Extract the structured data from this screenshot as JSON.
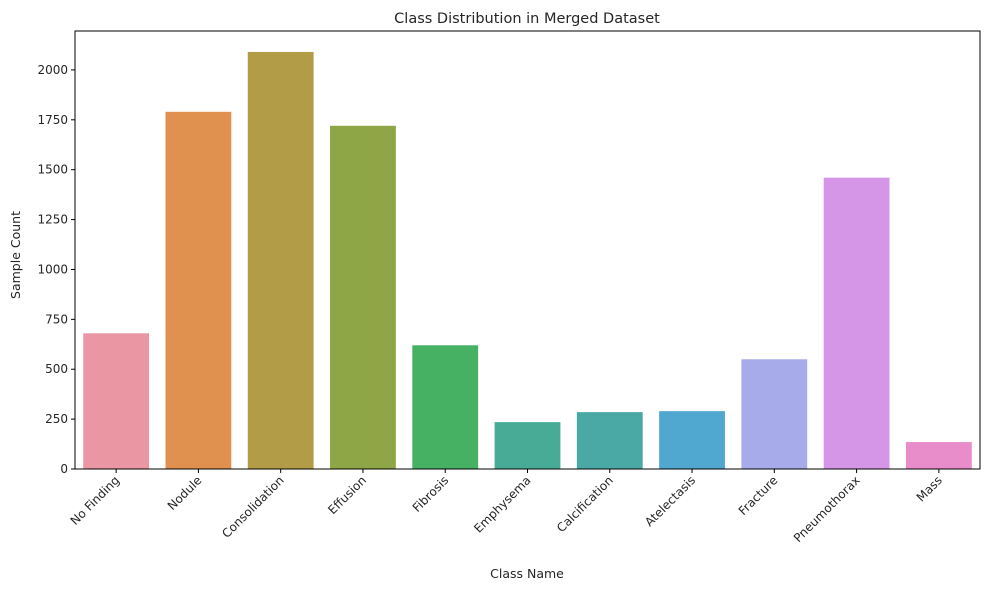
{
  "chart_data": {
    "type": "bar",
    "title": "Class Distribution in Merged Dataset",
    "xlabel": "Class Name",
    "ylabel": "Sample Count",
    "categories": [
      "No Finding",
      "Nodule",
      "Consolidation",
      "Effusion",
      "Fibrosis",
      "Emphysema",
      "Calcification",
      "Atelectasis",
      "Fracture",
      "Pneumothorax",
      "Mass"
    ],
    "values": [
      680,
      1790,
      2090,
      1720,
      620,
      235,
      285,
      290,
      550,
      1460,
      135
    ],
    "colors": [
      "#ea96a3",
      "#e09150",
      "#b29c47",
      "#8ea645",
      "#46b063",
      "#48ab95",
      "#4aa8a5",
      "#50a8d0",
      "#a8abea",
      "#d596e8",
      "#e88dc9"
    ],
    "ylim": [
      0,
      2195
    ],
    "yticks": [
      0,
      250,
      500,
      750,
      1000,
      1250,
      1500,
      1750,
      2000
    ],
    "grid": false,
    "legend": "none"
  }
}
